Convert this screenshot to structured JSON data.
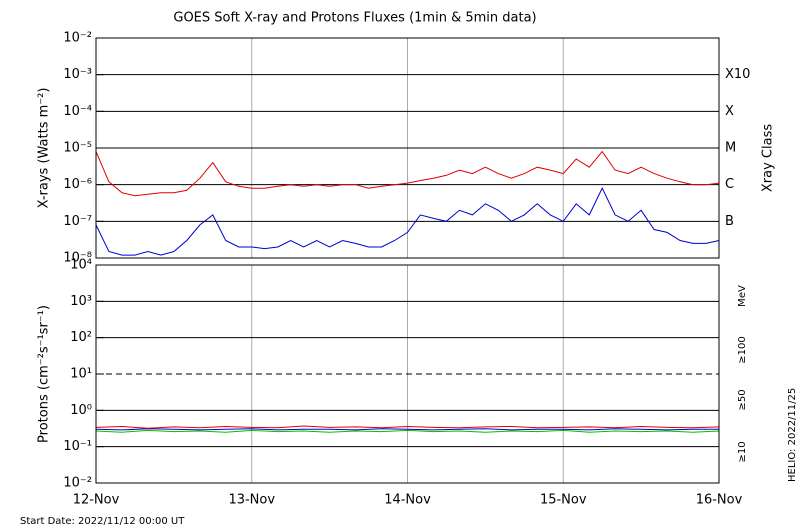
{
  "chart_data": [
    {
      "type": "line",
      "title": "GOES Soft X-ray and Protons Fluxes   (1min & 5min data)",
      "y_label": "X-rays (Watts m⁻²)",
      "right_axis_label": "Xray Class",
      "log_y": true,
      "grid": true,
      "xlim": [
        0,
        4
      ],
      "ylim": [
        1e-08,
        0.01
      ],
      "yticks": [
        {
          "value": 1e-08,
          "label": "10⁻⁸"
        },
        {
          "value": 1e-07,
          "label": "10⁻⁷"
        },
        {
          "value": 1e-06,
          "label": "10⁻⁶"
        },
        {
          "value": 1e-05,
          "label": "10⁻⁵"
        },
        {
          "value": 0.0001,
          "label": "10⁻⁴"
        },
        {
          "value": 0.001,
          "label": "10⁻³"
        },
        {
          "value": 0.01,
          "label": "10⁻²"
        }
      ],
      "class_labels": [
        {
          "value": 0.001,
          "label": "X10"
        },
        {
          "value": 0.0001,
          "label": "X"
        },
        {
          "value": 1e-05,
          "label": "M"
        },
        {
          "value": 1e-06,
          "label": "C"
        },
        {
          "value": 1e-07,
          "label": "B"
        }
      ],
      "x": [
        0,
        0.083,
        0.167,
        0.25,
        0.333,
        0.417,
        0.5,
        0.583,
        0.667,
        0.75,
        0.833,
        0.917,
        1,
        1.083,
        1.167,
        1.25,
        1.333,
        1.417,
        1.5,
        1.583,
        1.667,
        1.75,
        1.833,
        1.917,
        2,
        2.083,
        2.167,
        2.25,
        2.333,
        2.417,
        2.5,
        2.583,
        2.667,
        2.75,
        2.833,
        2.917,
        3,
        3.083,
        3.167,
        3.25,
        3.333,
        3.417,
        3.5,
        3.583,
        3.667,
        3.75,
        3.833,
        3.917,
        4
      ],
      "series": [
        {
          "color": "#e00000",
          "values": [
            8e-06,
            1.2e-06,
            6e-07,
            5e-07,
            5.5e-07,
            6e-07,
            6e-07,
            7e-07,
            1.5e-06,
            4e-06,
            1.2e-06,
            9e-07,
            8e-07,
            8e-07,
            9e-07,
            1e-06,
            9e-07,
            1e-06,
            9e-07,
            1e-06,
            1e-06,
            8e-07,
            9e-07,
            1e-06,
            1.1e-06,
            1.3e-06,
            1.5e-06,
            1.8e-06,
            2.5e-06,
            2e-06,
            3e-06,
            2e-06,
            1.5e-06,
            2e-06,
            3e-06,
            2.5e-06,
            2e-06,
            5e-06,
            3e-06,
            8e-06,
            2.5e-06,
            2e-06,
            3e-06,
            2e-06,
            1.5e-06,
            1.2e-06,
            1e-06,
            1e-06,
            1.1e-06
          ]
        },
        {
          "color": "#0000d0",
          "values": [
            8e-08,
            1.5e-08,
            1.2e-08,
            1.2e-08,
            1.5e-08,
            1.2e-08,
            1.5e-08,
            3e-08,
            8e-08,
            1.5e-07,
            3e-08,
            2e-08,
            2e-08,
            1.8e-08,
            2e-08,
            3e-08,
            2e-08,
            3e-08,
            2e-08,
            3e-08,
            2.5e-08,
            2e-08,
            2e-08,
            3e-08,
            5e-08,
            1.5e-07,
            1.2e-07,
            1e-07,
            2e-07,
            1.5e-07,
            3e-07,
            2e-07,
            1e-07,
            1.5e-07,
            3e-07,
            1.5e-07,
            1e-07,
            3e-07,
            1.5e-07,
            8e-07,
            1.5e-07,
            1e-07,
            2e-07,
            6e-08,
            5e-08,
            3e-08,
            2.5e-08,
            2.5e-08,
            3e-08
          ]
        }
      ]
    },
    {
      "type": "line",
      "y_label": "Protons (cm⁻²s⁻¹sr⁻¹)",
      "energy_unit": "MeV",
      "log_y": true,
      "grid": true,
      "threshold": 10,
      "xlim": [
        0,
        4
      ],
      "ylim": [
        0.01,
        10000.0
      ],
      "xticks": [
        {
          "value": 0,
          "label": "12-Nov"
        },
        {
          "value": 1,
          "label": "13-Nov"
        },
        {
          "value": 2,
          "label": "14-Nov"
        },
        {
          "value": 3,
          "label": "15-Nov"
        },
        {
          "value": 4,
          "label": "16-Nov"
        }
      ],
      "yticks": [
        {
          "value": 0.01,
          "label": "10⁻²"
        },
        {
          "value": 0.1,
          "label": "10⁻¹"
        },
        {
          "value": 1,
          "label": "10⁰"
        },
        {
          "value": 10,
          "label": "10¹"
        },
        {
          "value": 100,
          "label": "10²"
        },
        {
          "value": 1000,
          "label": "10³"
        },
        {
          "value": 10000,
          "label": "10⁴"
        }
      ],
      "x": [
        0,
        0.167,
        0.333,
        0.5,
        0.667,
        0.833,
        1,
        1.167,
        1.333,
        1.5,
        1.667,
        1.833,
        2,
        2.167,
        2.333,
        2.5,
        2.667,
        2.833,
        3,
        3.167,
        3.333,
        3.5,
        3.667,
        3.833,
        4
      ],
      "series": [
        {
          "name": "≥100",
          "color": "#00c000",
          "values": [
            0.27,
            0.25,
            0.28,
            0.26,
            0.27,
            0.25,
            0.28,
            0.26,
            0.27,
            0.25,
            0.27,
            0.26,
            0.28,
            0.26,
            0.27,
            0.25,
            0.27,
            0.26,
            0.28,
            0.25,
            0.27,
            0.26,
            0.27,
            0.25,
            0.27
          ]
        },
        {
          "name": "≥50",
          "color": "#0000d0",
          "values": [
            0.3,
            0.29,
            0.31,
            0.3,
            0.29,
            0.3,
            0.31,
            0.29,
            0.3,
            0.3,
            0.29,
            0.31,
            0.3,
            0.29,
            0.3,
            0.31,
            0.29,
            0.3,
            0.3,
            0.29,
            0.31,
            0.3,
            0.29,
            0.3,
            0.3
          ]
        },
        {
          "name": "≥10",
          "color": "#e00000",
          "values": [
            0.34,
            0.36,
            0.32,
            0.35,
            0.33,
            0.36,
            0.34,
            0.33,
            0.37,
            0.34,
            0.35,
            0.33,
            0.36,
            0.34,
            0.33,
            0.35,
            0.36,
            0.33,
            0.34,
            0.35,
            0.33,
            0.36,
            0.34,
            0.33,
            0.35
          ]
        }
      ]
    }
  ],
  "footer": {
    "start_date": "Start Date: 2022/11/12 00:00 UT",
    "helio": "HELIO: 2022/11/25"
  }
}
